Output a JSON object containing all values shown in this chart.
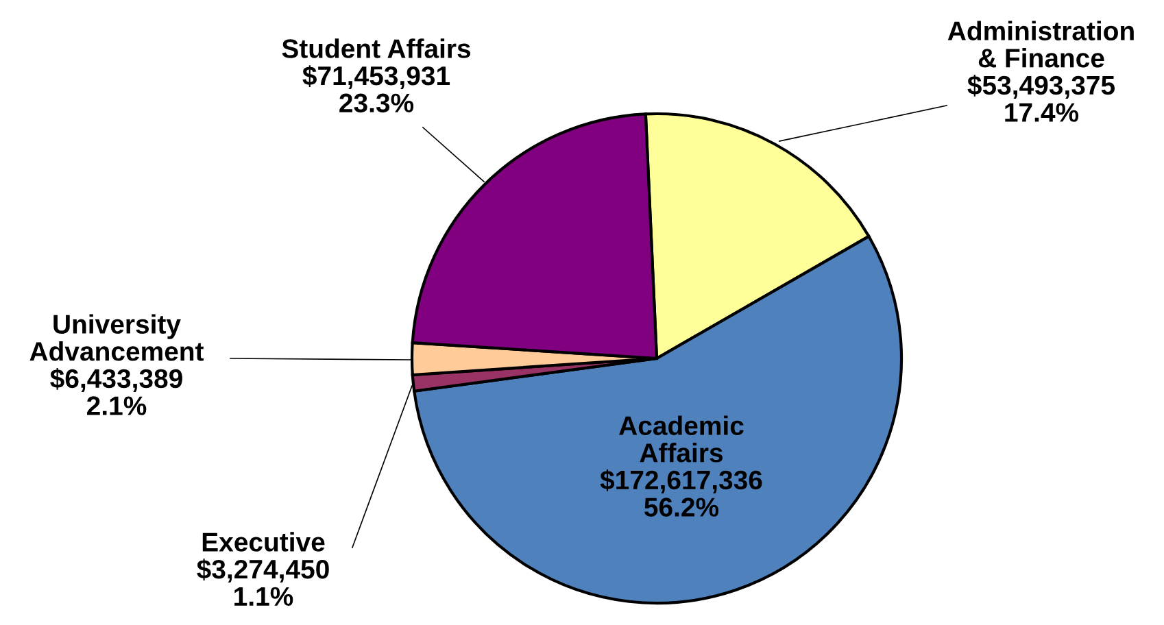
{
  "chart_data": {
    "type": "pie",
    "categories": [
      "Administration\n& Finance",
      "Academic\nAffairs",
      "Executive",
      "University\nAdvancement",
      "Student Affairs"
    ],
    "values": [
      53493375,
      172617336,
      3274450,
      6433389,
      71453931
    ],
    "colors": [
      "#ffff99",
      "#4f81bd",
      "#993366",
      "#ffcc99",
      "#800080"
    ],
    "value_labels": [
      "$53,493,375\n17.4%",
      "$172,617,336\n56.2%",
      "$3,274,450\n1.1%",
      "$6,433,389\n2.1%",
      "$71,453,931\n23.3%"
    ],
    "legend": false
  }
}
